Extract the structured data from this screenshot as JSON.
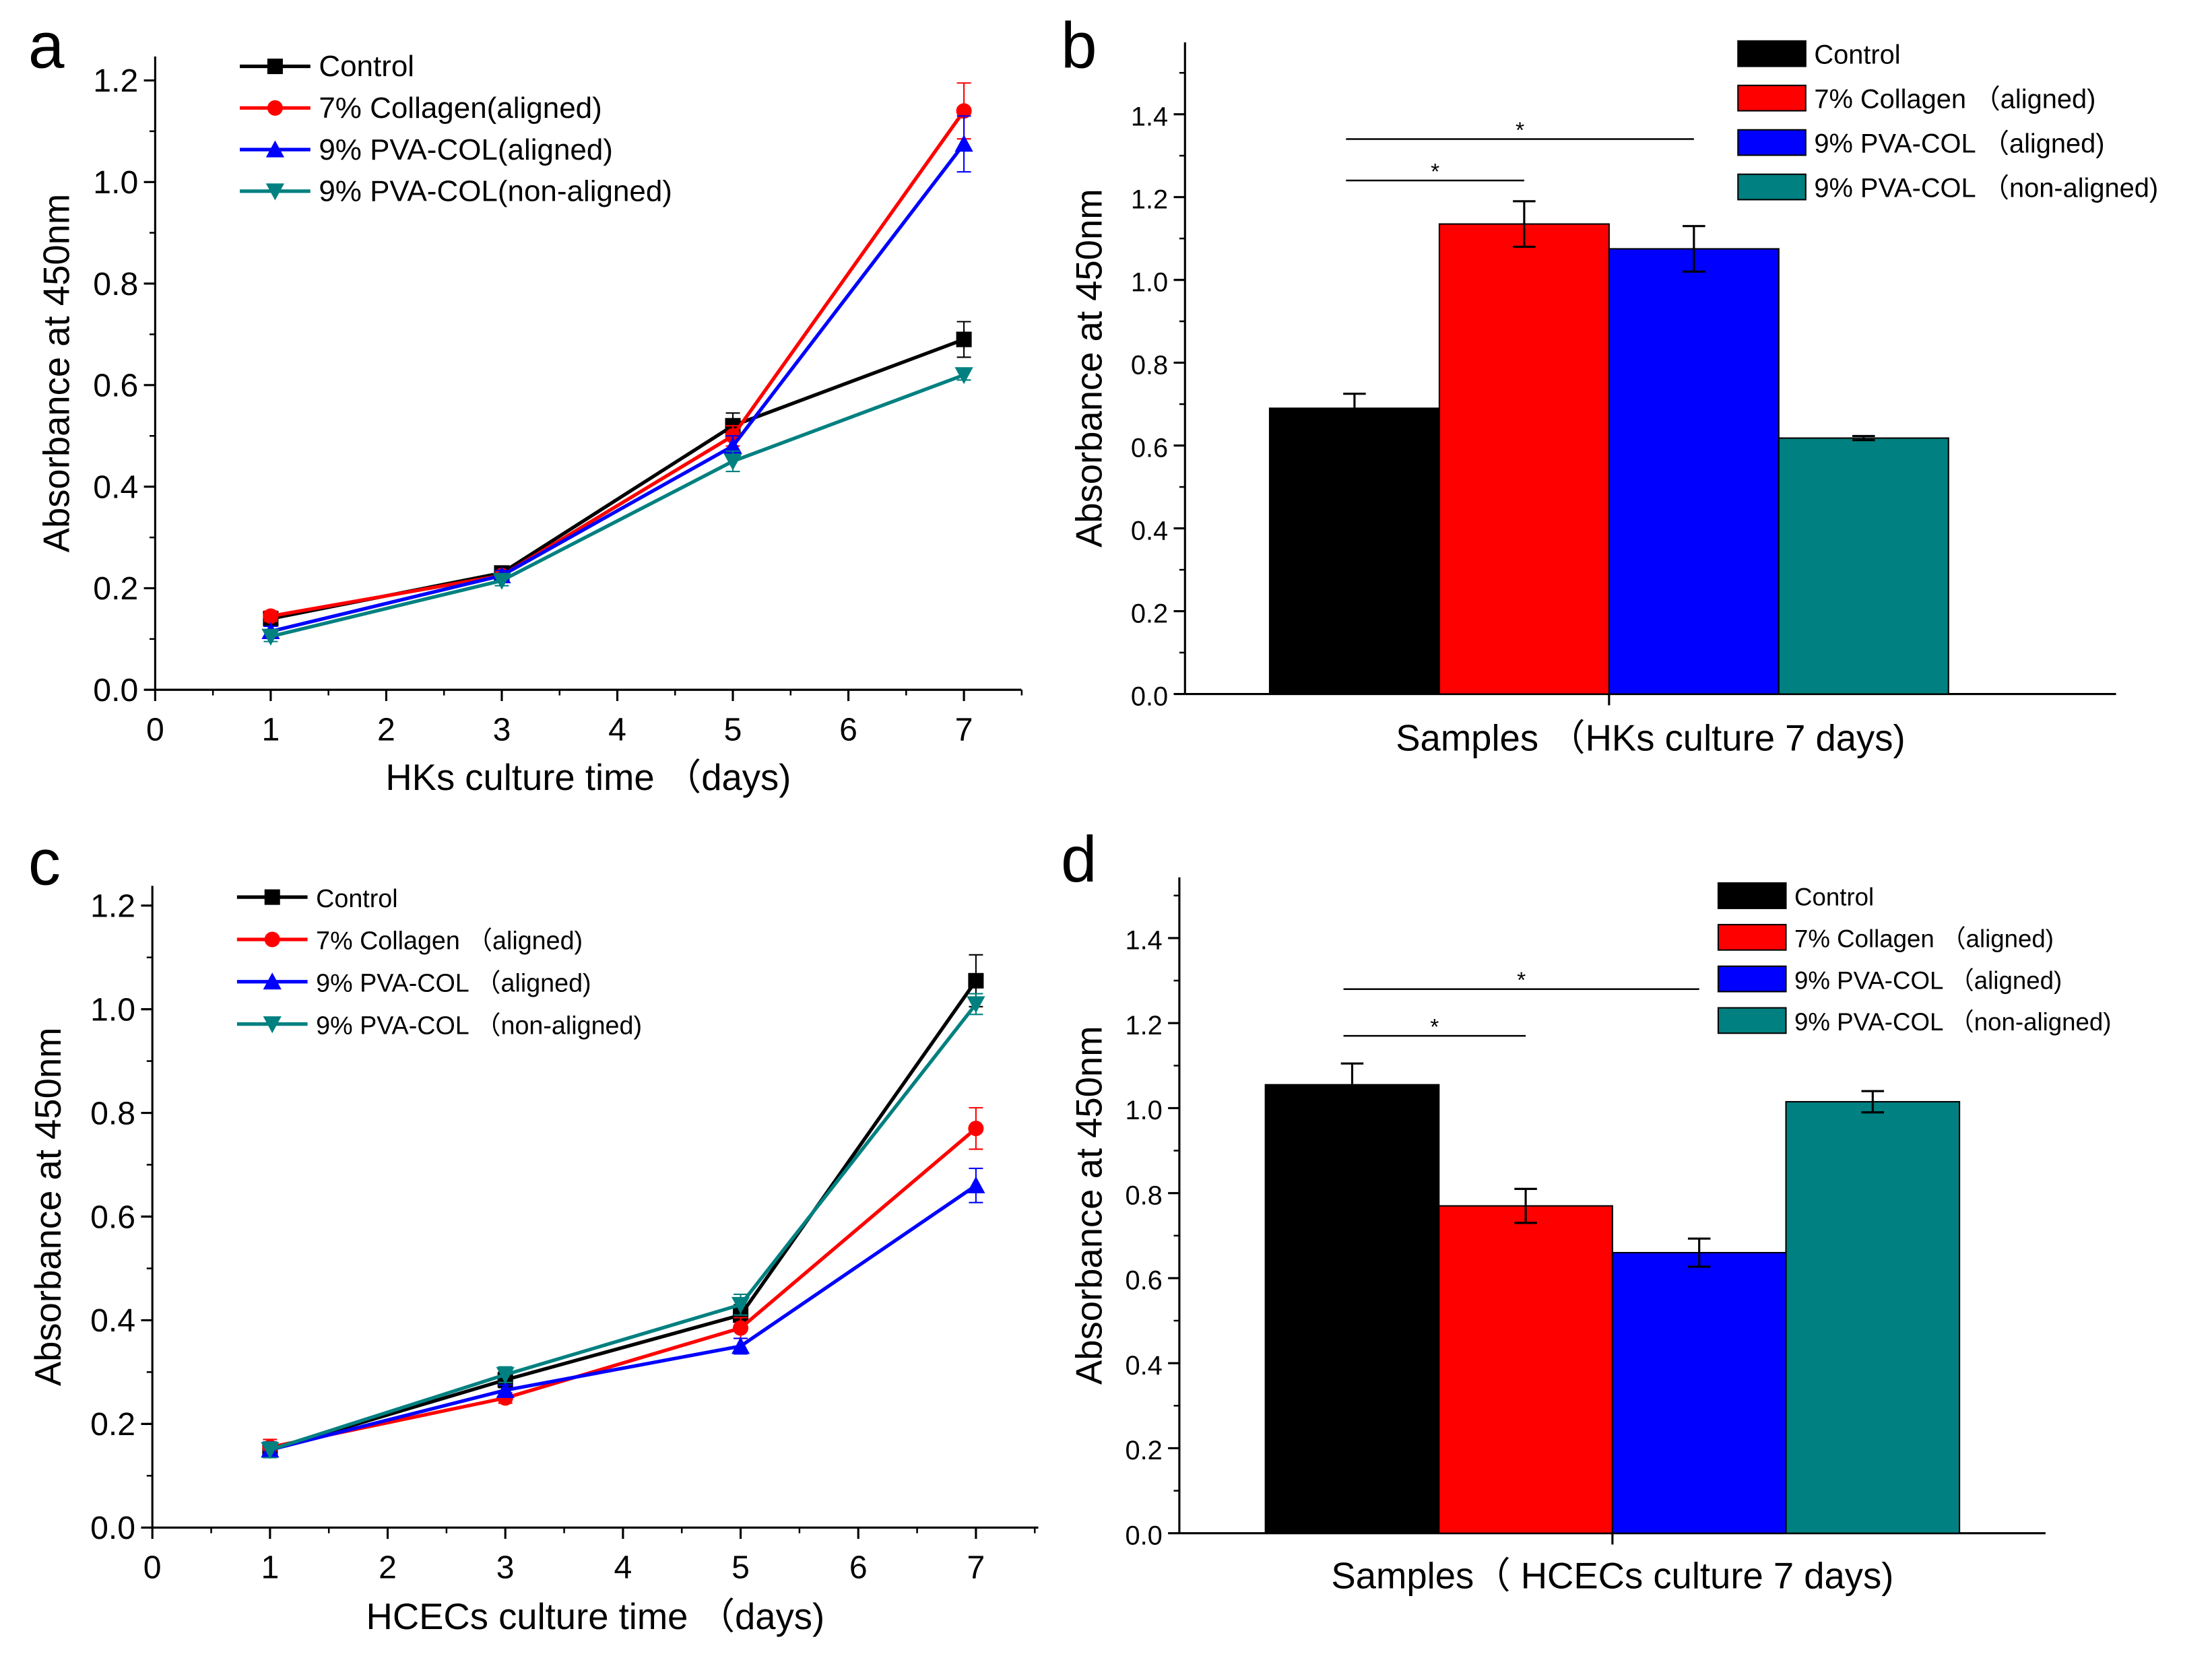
{
  "colors": {
    "control": "#000000",
    "collagen": "#ff0000",
    "pva_aligned": "#0000ff",
    "pva_nonaligned": "#008080"
  },
  "chart_data": [
    {
      "panel": "a",
      "type": "line",
      "xlabel": "HKs culture time （days)",
      "ylabel": "Absorbance at 450nm",
      "xlim": [
        0,
        7.5
      ],
      "ylim": [
        0,
        1.25
      ],
      "xticks": [
        "0",
        "1",
        "2",
        "3",
        "4",
        "5",
        "6",
        "7"
      ],
      "yticks": [
        "0.0",
        "0.2",
        "0.4",
        "0.6",
        "0.8",
        "1.0",
        "1.2"
      ],
      "x": [
        1,
        3,
        5,
        7
      ],
      "legend_position": "top-left",
      "series": [
        {
          "name": "Control",
          "marker": "square",
          "color": "#000000",
          "values": [
            0.14,
            0.23,
            0.52,
            0.69
          ],
          "errors": [
            0.01,
            0.01,
            0.025,
            0.035
          ]
        },
        {
          "name": "7% Collagen(aligned)",
          "marker": "circle",
          "color": "#ff0000",
          "values": [
            0.145,
            0.225,
            0.5,
            1.14
          ],
          "errors": [
            0.01,
            0.01,
            0.02,
            0.055
          ]
        },
        {
          "name": "9% PVA-COL(aligned)",
          "marker": "triangle-up",
          "color": "#0000ff",
          "values": [
            0.115,
            0.225,
            0.48,
            1.075
          ],
          "errors": [
            0.01,
            0.01,
            0.02,
            0.055
          ]
        },
        {
          "name": "9% PVA-COL(non-aligned)",
          "marker": "triangle-down",
          "color": "#008080",
          "values": [
            0.105,
            0.215,
            0.45,
            0.62
          ],
          "errors": [
            0.01,
            0.01,
            0.02,
            0.01
          ]
        }
      ]
    },
    {
      "panel": "b",
      "type": "bar",
      "xlabel": "Samples （HKs culture 7 days)",
      "ylabel": "Absorbance at 450nm",
      "ylim": [
        0,
        1.5
      ],
      "yticks": [
        "0.0",
        "0.2",
        "0.4",
        "0.6",
        "0.8",
        "1.0",
        "1.2",
        "1.4"
      ],
      "legend_position": "top-right",
      "categories": [
        "Control",
        "7% Collagen （aligned)",
        "9% PVA-COL （aligned)",
        "9% PVA-COL （non-aligned)"
      ],
      "bar_colors": [
        "#000000",
        "#ff0000",
        "#0000ff",
        "#008080"
      ],
      "values": [
        0.69,
        1.135,
        1.075,
        0.618
      ],
      "errors": [
        0.035,
        0.055,
        0.055,
        0.005
      ],
      "annotations": [
        {
          "text": "*",
          "from": 0,
          "to": 2,
          "level": 1.34
        },
        {
          "text": "*",
          "from": 0,
          "to": 1,
          "level": 1.24
        }
      ]
    },
    {
      "panel": "c",
      "type": "line",
      "xlabel": "HCECs culture  time （days)",
      "ylabel": "Absorbance at 450nm",
      "xlim": [
        0,
        7.5
      ],
      "ylim": [
        0,
        1.25
      ],
      "xticks": [
        "0",
        "1",
        "2",
        "3",
        "4",
        "5",
        "6",
        "7"
      ],
      "yticks": [
        "0.0",
        "0.2",
        "0.4",
        "0.6",
        "0.8",
        "1.0",
        "1.2"
      ],
      "x": [
        1,
        3,
        5,
        7
      ],
      "legend_position": "top-left",
      "series": [
        {
          "name": "Control",
          "marker": "square",
          "color": "#000000",
          "values": [
            0.15,
            0.285,
            0.41,
            1.055
          ],
          "errors": [
            0.015,
            0.015,
            0.02,
            0.05
          ]
        },
        {
          "name": "7% Collagen （aligned)",
          "marker": "circle",
          "color": "#ff0000",
          "values": [
            0.155,
            0.25,
            0.385,
            0.77
          ],
          "errors": [
            0.015,
            0.01,
            0.02,
            0.04
          ]
        },
        {
          "name": "9% PVA-COL （aligned)",
          "marker": "triangle-up",
          "color": "#0000ff",
          "values": [
            0.15,
            0.265,
            0.35,
            0.66
          ],
          "errors": [
            0.015,
            0.01,
            0.015,
            0.033
          ]
        },
        {
          "name": "9% PVA-COL （non-aligned)",
          "marker": "triangle-down",
          "color": "#008080",
          "values": [
            0.15,
            0.295,
            0.43,
            1.01
          ],
          "errors": [
            0.015,
            0.015,
            0.02,
            0.02
          ]
        }
      ]
    },
    {
      "panel": "d",
      "type": "bar",
      "xlabel": "Samples（ HCECs culture 7 days)",
      "ylabel": "Absorbance at 450nm",
      "ylim": [
        0,
        1.5
      ],
      "yticks": [
        "0.0",
        "0.2",
        "0.4",
        "0.6",
        "0.8",
        "1.0",
        "1.2",
        "1.4"
      ],
      "legend_position": "top-right",
      "categories": [
        "Control",
        "7% Collagen （aligned)",
        "9% PVA-COL （aligned)",
        "9% PVA-COL （non-aligned)"
      ],
      "bar_colors": [
        "#000000",
        "#ff0000",
        "#0000ff",
        "#008080"
      ],
      "values": [
        1.055,
        0.77,
        0.66,
        1.015
      ],
      "errors": [
        0.05,
        0.04,
        0.033,
        0.025
      ],
      "annotations": [
        {
          "text": "*",
          "from": 0,
          "to": 2,
          "level": 1.28
        },
        {
          "text": "*",
          "from": 0,
          "to": 1,
          "level": 1.17
        }
      ]
    }
  ]
}
